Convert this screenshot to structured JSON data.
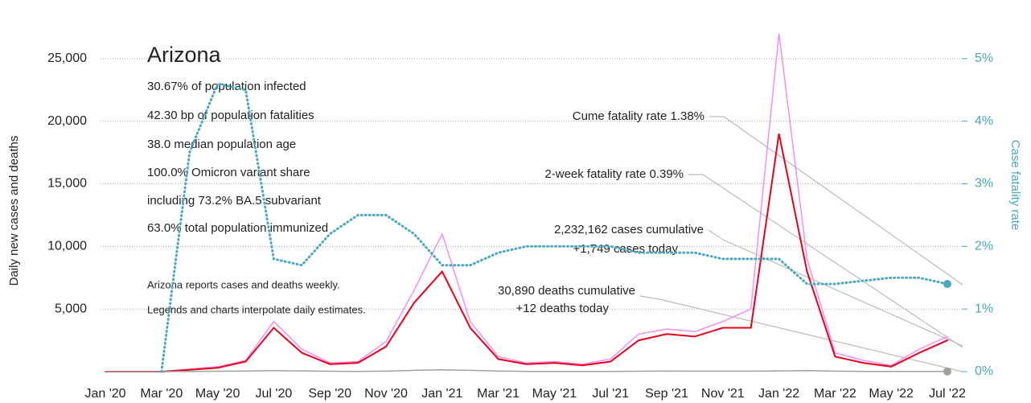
{
  "chart_data": {
    "type": "line",
    "title": "Arizona",
    "info": [
      "30.67% of population infected",
      "42.30 bp of population fatalities",
      "38.0 median population age",
      "100.0% Omicron variant share",
      "including 73.2% BA.5 subvariant",
      "63.0% total population immunized"
    ],
    "notes": [
      "Arizona reports cases and deaths weekly.",
      "Legends and charts interpolate daily estimates."
    ],
    "annotations": [
      "Cume fatality rate 1.38%",
      "2-week fatality rate 0.39%",
      "2,232,162 cases cumulative",
      "+1,749 cases today",
      "30,890 deaths cumulative",
      "+12 deaths today"
    ],
    "ylabel": "Daily new cases and deaths",
    "y2label": "Case fatality rate",
    "categories": [
      "Jan '20",
      null,
      "Mar '20",
      null,
      "May '20",
      null,
      "Jul '20",
      null,
      "Sep '20",
      null,
      "Nov '20",
      null,
      "Jan '21",
      null,
      "Mar '21",
      null,
      "May '21",
      null,
      "Jul '21",
      null,
      "Sep '21",
      null,
      "Nov '21",
      null,
      "Jan '22",
      null,
      "Mar '22",
      null,
      "May '22",
      null,
      "Jul '22"
    ],
    "series": [
      {
        "color": "#f28ef2",
        "values": [
          0,
          0,
          0,
          200,
          400,
          900,
          4000,
          1800,
          700,
          800,
          2400,
          6500,
          11000,
          4000,
          1200,
          700,
          800,
          600,
          1000,
          3000,
          3400,
          3200,
          4000,
          5000,
          27000,
          9000,
          1500,
          900,
          500,
          1800,
          2800
        ]
      },
      {
        "color": "#e8001c",
        "values": [
          0,
          0,
          0,
          150,
          300,
          800,
          3500,
          1500,
          600,
          700,
          2000,
          5500,
          8000,
          3500,
          1000,
          600,
          700,
          500,
          800,
          2500,
          3000,
          2800,
          3500,
          3500,
          19000,
          8000,
          1200,
          700,
          400,
          1500,
          2500
        ]
      },
      {
        "color": "#a0a0a0",
        "values": [
          0,
          0,
          0,
          10,
          30,
          50,
          80,
          60,
          30,
          20,
          40,
          100,
          150,
          100,
          50,
          20,
          15,
          10,
          15,
          30,
          50,
          40,
          40,
          40,
          60,
          80,
          40,
          15,
          10,
          10,
          10
        ]
      },
      {
        "color": "#4aa8c0",
        "axis": "y2",
        "dotted": true,
        "values": [
          null,
          null,
          0,
          3.5,
          4.6,
          4.5,
          1.8,
          1.7,
          2.2,
          2.5,
          2.5,
          2.2,
          1.7,
          1.7,
          1.9,
          2.0,
          2.0,
          2.0,
          2.0,
          1.9,
          1.9,
          1.9,
          1.8,
          1.8,
          1.8,
          1.4,
          1.4,
          1.45,
          1.5,
          1.5,
          1.4
        ]
      }
    ],
    "ylim": [
      0,
      30000
    ],
    "yticks": [
      {
        "value": 5000,
        "label": "5,000"
      },
      {
        "value": 10000,
        "label": "10,000"
      },
      {
        "value": 15000,
        "label": "15,000"
      },
      {
        "value": 20000,
        "label": "20,000"
      },
      {
        "value": 25000,
        "label": "25,000"
      }
    ],
    "y2lim": [
      0,
      6
    ],
    "y2ticks": [
      {
        "value": 0,
        "label": "0%"
      },
      {
        "value": 1,
        "label": "1%"
      },
      {
        "value": 2,
        "label": "2%"
      },
      {
        "value": 3,
        "label": "3%"
      },
      {
        "value": 4,
        "label": "4%"
      },
      {
        "value": 5,
        "label": "5%"
      }
    ],
    "grid": true
  }
}
